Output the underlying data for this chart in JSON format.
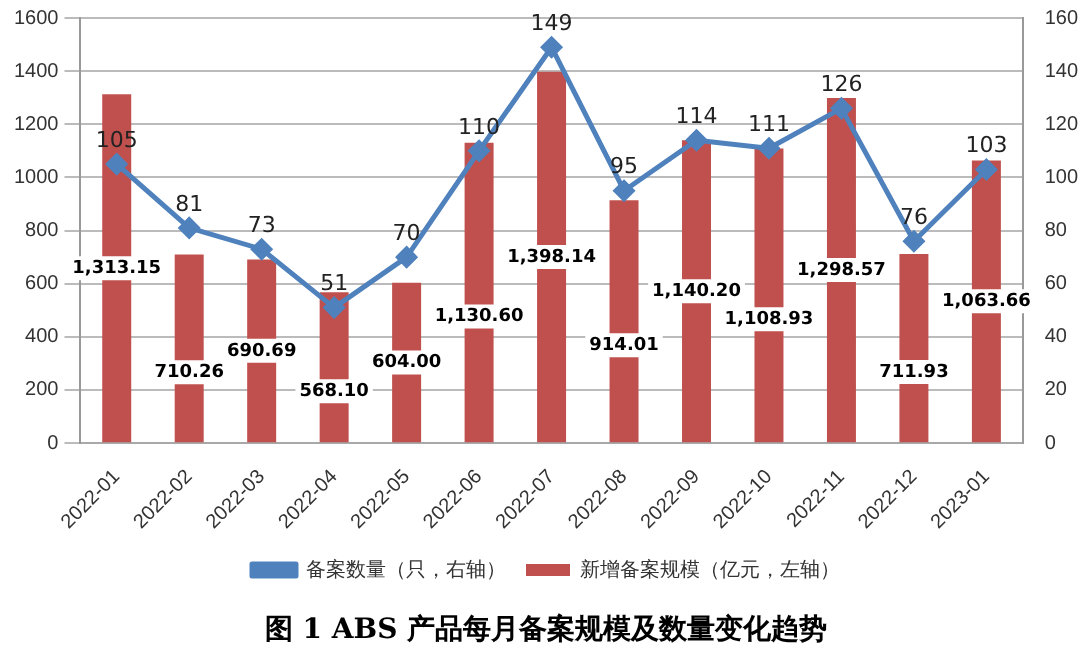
{
  "chart_data": {
    "type": "bar",
    "title": "图 1  ABS 产品每月备案规模及数量变化趋势",
    "categories": [
      "2022-01",
      "2022-02",
      "2022-03",
      "2022-04",
      "2022-05",
      "2022-06",
      "2022-07",
      "2022-08",
      "2022-09",
      "2022-10",
      "2022-11",
      "2022-12",
      "2023-01"
    ],
    "series": [
      {
        "name": "新增备案规模（亿元，左轴）",
        "color": "#c0504d",
        "values": [
          1313.15,
          710.26,
          690.69,
          568.1,
          604.0,
          1130.6,
          1398.14,
          914.01,
          1140.2,
          1108.93,
          1298.57,
          711.93,
          1063.66
        ],
        "value_labels": [
          "1,313.15",
          "710.26",
          "690.69",
          "568.10",
          "604.00",
          "1,130.60",
          "1,398.14",
          "914.01",
          "1,140.20",
          "1,108.93",
          "1,298.57",
          "711.93",
          "1,063.66"
        ]
      },
      {
        "name": "备案数量（只，右轴）",
        "type": "line",
        "axis": "y2",
        "color": "#4f81bd",
        "marker": "diamond",
        "values": [
          105,
          81,
          73,
          51,
          70,
          110,
          149,
          95,
          114,
          111,
          126,
          76,
          103
        ],
        "value_labels": [
          "105",
          "81",
          "73",
          "51",
          "70",
          "110",
          "149",
          "95",
          "114",
          "111",
          "126",
          "76",
          "103"
        ]
      }
    ],
    "ylim": [
      0,
      1600
    ],
    "yticks": [
      0,
      200,
      400,
      600,
      800,
      1000,
      1200,
      1400,
      1600
    ],
    "y2lim": [
      0,
      160
    ],
    "y2ticks": [
      0,
      20,
      40,
      60,
      80,
      100,
      120,
      140,
      160
    ],
    "grid": "y",
    "legend": "bottom"
  }
}
